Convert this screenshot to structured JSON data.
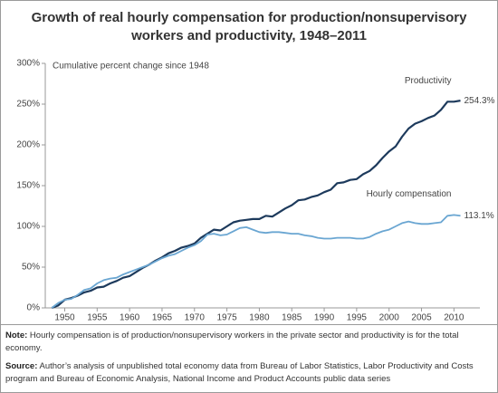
{
  "chart_data": {
    "type": "line",
    "title": "Growth of real hourly compensation for production/nonsupervisory workers and productivity, 1948–2011",
    "y_label": "Cumulative percent change since 1948",
    "x": [
      1948,
      1949,
      1950,
      1951,
      1952,
      1953,
      1954,
      1955,
      1956,
      1957,
      1958,
      1959,
      1960,
      1961,
      1962,
      1963,
      1964,
      1965,
      1966,
      1967,
      1968,
      1969,
      1970,
      1971,
      1972,
      1973,
      1974,
      1975,
      1976,
      1977,
      1978,
      1979,
      1980,
      1981,
      1982,
      1983,
      1984,
      1985,
      1986,
      1987,
      1988,
      1989,
      1990,
      1991,
      1992,
      1993,
      1994,
      1995,
      1996,
      1997,
      1998,
      1999,
      2000,
      2001,
      2002,
      2003,
      2004,
      2005,
      2006,
      2007,
      2008,
      2009,
      2010,
      2011
    ],
    "series": [
      {
        "name": "Productivity",
        "color": "#1d3a5c",
        "values": [
          0,
          3,
          10,
          12,
          15,
          19,
          21,
          25,
          26,
          30,
          33,
          37,
          39,
          44,
          49,
          53,
          58,
          62,
          67,
          70,
          74,
          76,
          79,
          86,
          91,
          96,
          95,
          100,
          105,
          107,
          108,
          109,
          109,
          113,
          112,
          117,
          122,
          126,
          132,
          133,
          136,
          138,
          142,
          145,
          153,
          154,
          157,
          158,
          164,
          168,
          175,
          184,
          192,
          198,
          210,
          220,
          226,
          229,
          233,
          236,
          243,
          253,
          253,
          254.3
        ],
        "value_labels": [
          null,
          null,
          null,
          null,
          null,
          null,
          null,
          null,
          null,
          null,
          null,
          null,
          null,
          null,
          null,
          null,
          null,
          null,
          null,
          null,
          null,
          null,
          null,
          null,
          null,
          null,
          null,
          null,
          null,
          null,
          null,
          null,
          null,
          null,
          null,
          null,
          null,
          null,
          null,
          null,
          null,
          null,
          null,
          null,
          null,
          null,
          null,
          null,
          null,
          null,
          null,
          null,
          null,
          null,
          null,
          null,
          null,
          null,
          null,
          null,
          null,
          null,
          null,
          "254.3%"
        ]
      },
      {
        "name": "Hourly compensation",
        "color": "#6aa6d2",
        "values": [
          0,
          6,
          10,
          11,
          16,
          22,
          24,
          30,
          34,
          36,
          37,
          41,
          44,
          47,
          50,
          53,
          57,
          61,
          64,
          66,
          70,
          74,
          77,
          82,
          90,
          91,
          89,
          90,
          94,
          98,
          99,
          96,
          93,
          92,
          93,
          93,
          92,
          91,
          91,
          89,
          88,
          86,
          85,
          85,
          86,
          86,
          86,
          85,
          85,
          87,
          91,
          94,
          96,
          100,
          104,
          106,
          104,
          103,
          103,
          104,
          105,
          113,
          114,
          113.1
        ],
        "value_labels": [
          null,
          null,
          null,
          null,
          null,
          null,
          null,
          null,
          null,
          null,
          null,
          null,
          null,
          null,
          null,
          null,
          null,
          null,
          null,
          null,
          null,
          null,
          null,
          null,
          null,
          null,
          null,
          null,
          null,
          null,
          null,
          null,
          null,
          null,
          null,
          null,
          null,
          null,
          null,
          null,
          null,
          null,
          null,
          null,
          null,
          null,
          null,
          null,
          null,
          null,
          null,
          null,
          null,
          null,
          null,
          null,
          null,
          null,
          null,
          null,
          null,
          null,
          null,
          "113.1%"
        ]
      }
    ],
    "xlim": [
      1947,
      2014
    ],
    "xticks": [
      1950,
      1955,
      1960,
      1965,
      1970,
      1975,
      1980,
      1985,
      1990,
      1995,
      2000,
      2005,
      2010
    ],
    "ylim": [
      0,
      300
    ],
    "yticks": [
      {
        "value": 0,
        "label": "0%"
      },
      {
        "value": 50,
        "label": "50%"
      },
      {
        "value": 100,
        "label": "100%"
      },
      {
        "value": 150,
        "label": "150%"
      },
      {
        "value": 200,
        "label": "200%"
      },
      {
        "value": 250,
        "label": "250%"
      },
      {
        "value": 300,
        "label": "300%"
      }
    ],
    "grid": false
  },
  "notes": [
    {
      "label": "Note:",
      "text": "Hourly compensation is of production/nonsupervisory workers in the private sector and productivity is for the total economy."
    },
    {
      "label": "Source:",
      "text": "Author’s analysis of unpublished total economy data from Bureau of Labor Statistics, Labor Productivity and Costs program and Bureau of Economic Analysis, National Income and Product Accounts public data series"
    }
  ]
}
